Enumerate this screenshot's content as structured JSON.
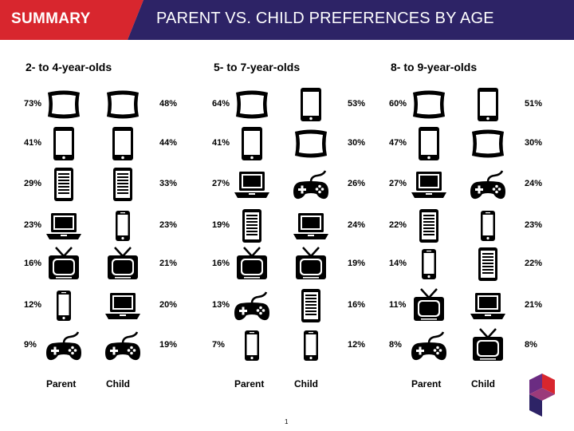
{
  "header": {
    "tag": "SUMMARY",
    "title": "PARENT VS. CHILD PREFERENCES BY AGE"
  },
  "groups": [
    {
      "title": "2- to 4-year-olds",
      "parent_label": "Parent",
      "child_label": "Child",
      "rows": [
        {
          "parent_pct": "73%",
          "parent_icon": "tv-screen-icon",
          "child_icon": "tv-screen-icon",
          "child_pct": "48%"
        },
        {
          "parent_pct": "41%",
          "parent_icon": "tablet-icon",
          "child_icon": "tablet-icon",
          "child_pct": "44%"
        },
        {
          "parent_pct": "29%",
          "parent_icon": "ereader-icon",
          "child_icon": "ereader-icon",
          "child_pct": "33%"
        },
        {
          "parent_pct": "23%",
          "parent_icon": "laptop-icon",
          "child_icon": "smartphone-icon",
          "child_pct": "23%"
        },
        {
          "parent_pct": "16%",
          "parent_icon": "retro-tv-icon",
          "child_icon": "retro-tv-icon",
          "child_pct": "21%"
        },
        {
          "parent_pct": "12%",
          "parent_icon": "smartphone-icon",
          "child_icon": "laptop-icon",
          "child_pct": "20%"
        },
        {
          "parent_pct": "9%",
          "parent_icon": "game-controller-icon",
          "child_icon": "game-controller-icon",
          "child_pct": "19%"
        }
      ]
    },
    {
      "title": "5- to 7-year-olds",
      "parent_label": "Parent",
      "child_label": "Child",
      "rows": [
        {
          "parent_pct": "64%",
          "parent_icon": "tv-screen-icon",
          "child_icon": "tablet-icon",
          "child_pct": "53%"
        },
        {
          "parent_pct": "41%",
          "parent_icon": "tablet-icon",
          "child_icon": "tv-screen-icon",
          "child_pct": "30%"
        },
        {
          "parent_pct": "27%",
          "parent_icon": "laptop-icon",
          "child_icon": "game-controller-icon",
          "child_pct": "26%"
        },
        {
          "parent_pct": "19%",
          "parent_icon": "ereader-icon",
          "child_icon": "laptop-icon",
          "child_pct": "24%"
        },
        {
          "parent_pct": "16%",
          "parent_icon": "retro-tv-icon",
          "child_icon": "retro-tv-icon",
          "child_pct": "19%"
        },
        {
          "parent_pct": "13%",
          "parent_icon": "game-controller-icon",
          "child_icon": "ereader-icon",
          "child_pct": "16%"
        },
        {
          "parent_pct": "7%",
          "parent_icon": "smartphone-icon",
          "child_icon": "smartphone-icon",
          "child_pct": "12%"
        }
      ]
    },
    {
      "title": "8- to 9-year-olds",
      "parent_label": "Parent",
      "child_label": "Child",
      "rows": [
        {
          "parent_pct": "60%",
          "parent_icon": "tv-screen-icon",
          "child_icon": "tablet-icon",
          "child_pct": "51%"
        },
        {
          "parent_pct": "47%",
          "parent_icon": "tablet-icon",
          "child_icon": "tv-screen-icon",
          "child_pct": "30%"
        },
        {
          "parent_pct": "27%",
          "parent_icon": "laptop-icon",
          "child_icon": "game-controller-icon",
          "child_pct": "24%"
        },
        {
          "parent_pct": "22%",
          "parent_icon": "ereader-icon",
          "child_icon": "smartphone-icon",
          "child_pct": "23%"
        },
        {
          "parent_pct": "14%",
          "parent_icon": "smartphone-icon",
          "child_icon": "ereader-icon",
          "child_pct": "22%"
        },
        {
          "parent_pct": "11%",
          "parent_icon": "retro-tv-icon",
          "child_icon": "laptop-icon",
          "child_pct": "21%"
        },
        {
          "parent_pct": "8%",
          "parent_icon": "game-controller-icon",
          "child_icon": "retro-tv-icon",
          "child_pct": "8%"
        }
      ]
    }
  ],
  "footer": {
    "page_number": "1"
  },
  "colors": {
    "header_red": "#d8262e",
    "header_navy": "#2d2366",
    "logo_red": "#d8262e",
    "logo_purple": "#6b2c82",
    "logo_navy": "#2d2366"
  }
}
